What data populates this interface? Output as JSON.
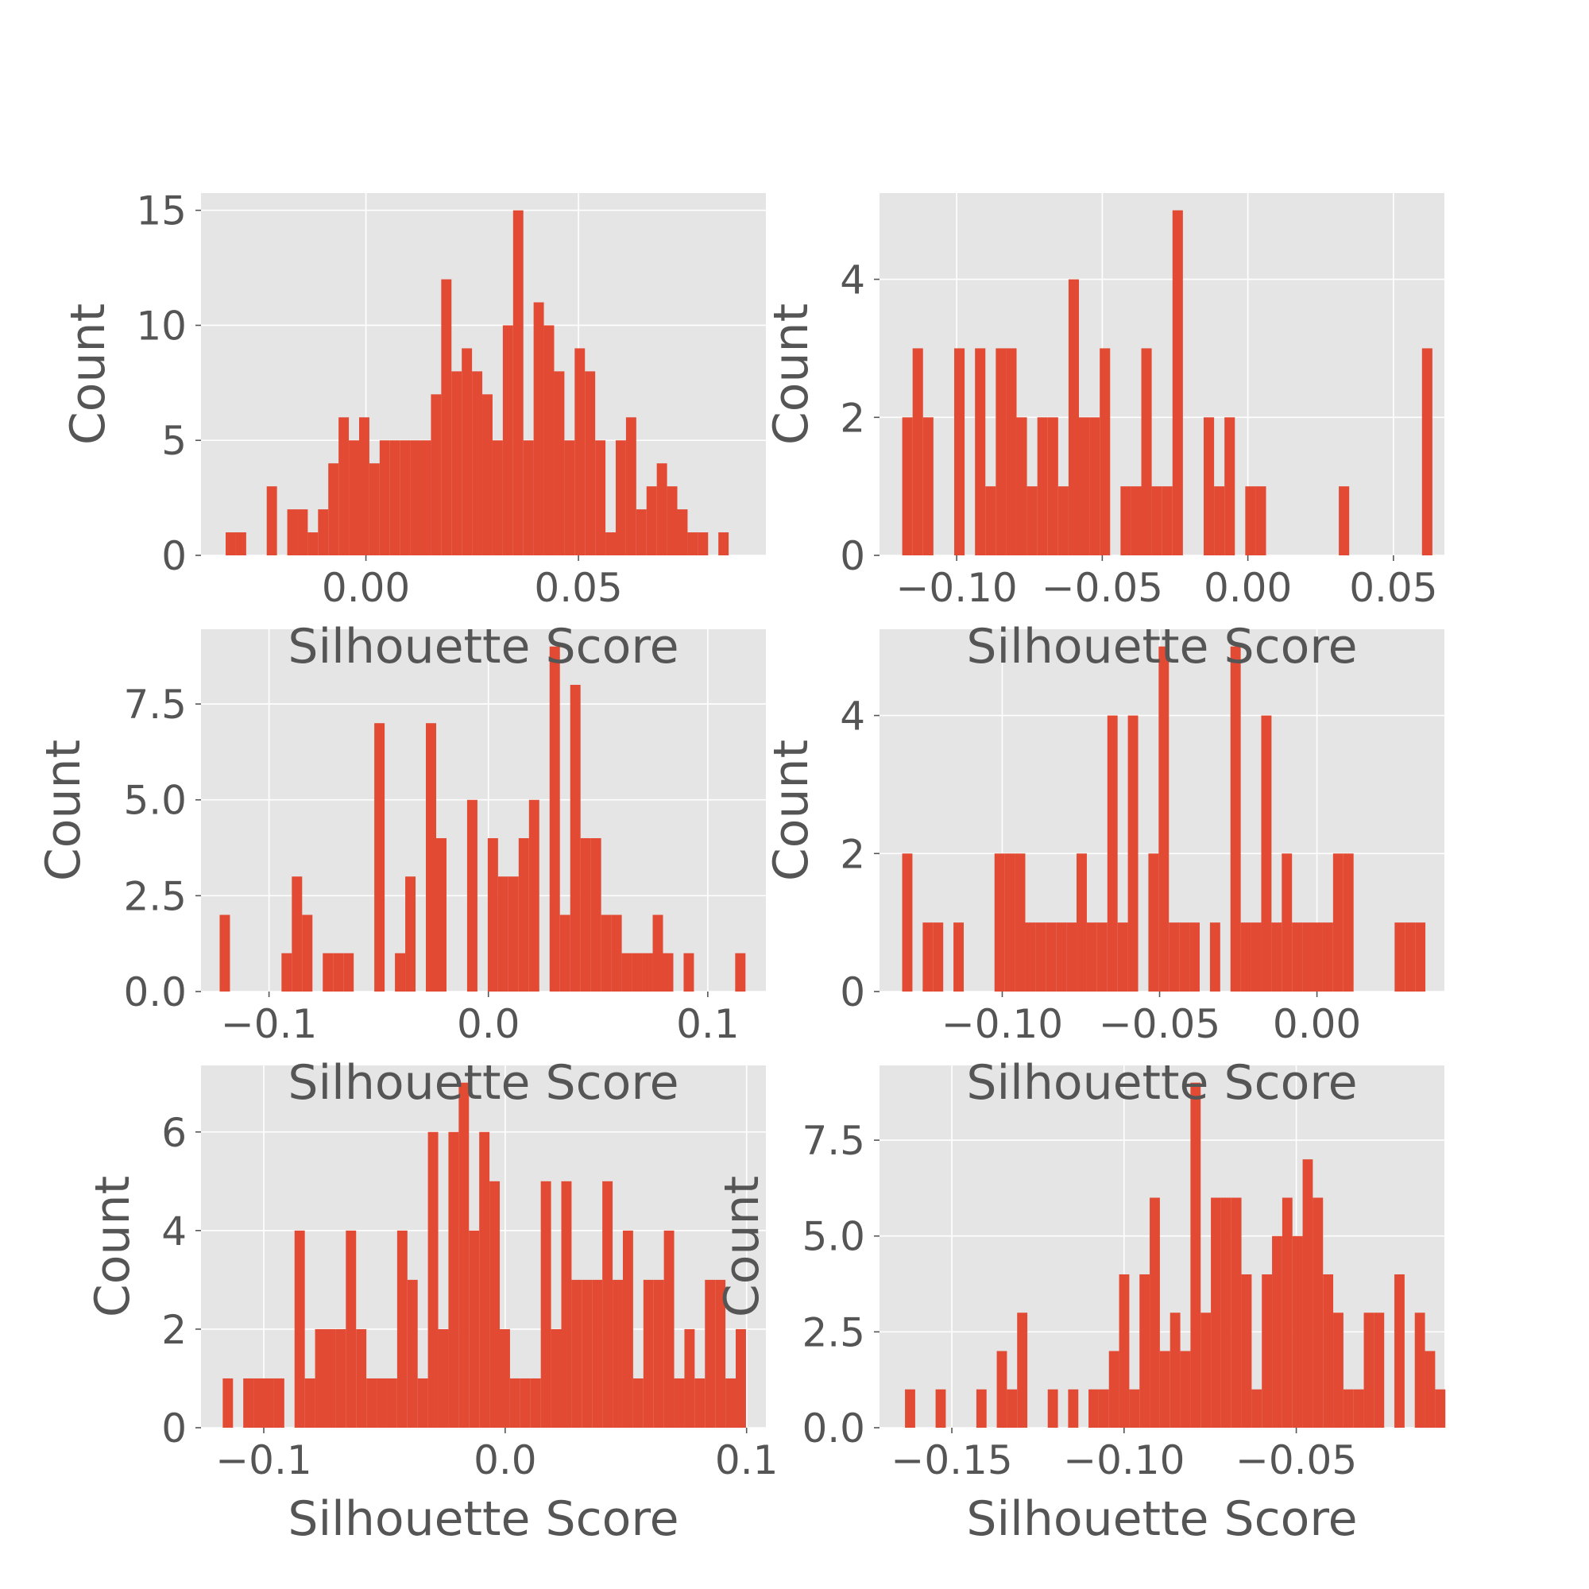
{
  "figure": {
    "bar_color": "#E24A33",
    "panel_bg": "#E5E5E5",
    "grid_color": "#FFFFFF",
    "text_color": "#555555"
  },
  "chart_data": [
    {
      "type": "bar",
      "title": "",
      "xlabel": "Silhouette Score",
      "ylabel": "Count",
      "xlim": [
        -0.0388,
        0.0941
      ],
      "ylim": [
        0,
        15.75
      ],
      "xticks": [
        0.0,
        0.05
      ],
      "xtick_labels": [
        "0.00",
        "0.05"
      ],
      "yticks": [
        0,
        5,
        10,
        15
      ],
      "ytick_labels": [
        "0",
        "5",
        "10",
        "15"
      ],
      "grid": true,
      "bin_start": -0.033,
      "bin_width": 0.002415,
      "values": [
        1,
        1,
        0,
        0,
        3,
        0,
        2,
        2,
        1,
        2,
        4,
        6,
        5,
        6,
        4,
        5,
        5,
        5,
        5,
        5,
        7,
        12,
        8,
        9,
        8,
        7,
        5,
        10,
        15,
        5,
        11,
        10,
        8,
        5,
        9,
        8,
        5,
        1,
        5,
        6,
        2,
        3,
        4,
        3,
        2,
        1,
        1,
        0,
        1
      ]
    },
    {
      "type": "bar",
      "title": "",
      "xlabel": "Silhouette Score",
      "ylabel": "Count",
      "xlim": [
        -0.1265,
        0.0675
      ],
      "ylim": [
        0,
        5.25
      ],
      "xticks": [
        -0.1,
        -0.05,
        0.0,
        0.05
      ],
      "xtick_labels": [
        "−0.10",
        "−0.05",
        "0.00",
        "0.05"
      ],
      "yticks": [
        0,
        2,
        4
      ],
      "ytick_labels": [
        "0",
        "2",
        "4"
      ],
      "grid": true,
      "bin_start": -0.1187,
      "bin_width": 0.00357,
      "values": [
        2,
        3,
        2,
        0,
        0,
        3,
        0,
        3,
        1,
        3,
        3,
        2,
        1,
        2,
        2,
        1,
        4,
        2,
        2,
        3,
        0,
        1,
        1,
        3,
        1,
        1,
        5,
        0,
        0,
        2,
        1,
        2,
        0,
        1,
        1,
        0,
        0,
        0,
        0,
        0,
        0,
        0,
        1,
        0,
        0,
        0,
        0,
        0,
        0,
        0,
        3
      ]
    },
    {
      "type": "bar",
      "title": "",
      "xlabel": "Silhouette Score",
      "ylabel": "Count",
      "xlim": [
        -0.131,
        0.1265
      ],
      "ylim": [
        0,
        9.45
      ],
      "xticks": [
        -0.1,
        0.0,
        0.1
      ],
      "xtick_labels": [
        "−0.1",
        "0.0",
        "0.1"
      ],
      "yticks": [
        0.0,
        2.5,
        5.0,
        7.5
      ],
      "ytick_labels": [
        "0.0",
        "2.5",
        "5.0",
        "7.5"
      ],
      "grid": true,
      "bin_start": -0.1225,
      "bin_width": 0.0047,
      "values": [
        2,
        0,
        0,
        0,
        0,
        0,
        1,
        3,
        2,
        0,
        1,
        1,
        1,
        0,
        0,
        7,
        0,
        1,
        3,
        0,
        7,
        4,
        0,
        0,
        5,
        0,
        4,
        3,
        3,
        4,
        5,
        0,
        9,
        2,
        8,
        4,
        4,
        2,
        2,
        1,
        1,
        1,
        2,
        1,
        0,
        1,
        0,
        0,
        0,
        0,
        1
      ]
    },
    {
      "type": "bar",
      "title": "",
      "xlabel": "Silhouette Score",
      "ylabel": "Count",
      "xlim": [
        -0.139,
        0.0405
      ],
      "ylim": [
        0,
        5.25
      ],
      "xticks": [
        -0.1,
        -0.05,
        0.0
      ],
      "xtick_labels": [
        "−0.10",
        "−0.05",
        "0.00"
      ],
      "yticks": [
        0,
        2,
        4
      ],
      "ytick_labels": [
        "0",
        "2",
        "4"
      ],
      "grid": true,
      "bin_start": -0.1318,
      "bin_width": 0.00326,
      "values": [
        2,
        0,
        1,
        1,
        0,
        1,
        0,
        0,
        0,
        2,
        2,
        2,
        1,
        1,
        1,
        1,
        1,
        2,
        1,
        1,
        4,
        1,
        4,
        0,
        2,
        5,
        1,
        1,
        1,
        0,
        1,
        0,
        5,
        1,
        1,
        4,
        1,
        2,
        1,
        1,
        1,
        1,
        2,
        2,
        0,
        0,
        0,
        0,
        1,
        1,
        1
      ]
    },
    {
      "type": "bar",
      "title": "",
      "xlabel": "Silhouette Score",
      "ylabel": "Count",
      "xlim": [
        -0.126,
        0.108
      ],
      "ylim": [
        0,
        7.35
      ],
      "xticks": [
        -0.1,
        0.0,
        0.1
      ],
      "xtick_labels": [
        "−0.1",
        "0.0",
        "0.1"
      ],
      "yticks": [
        0,
        2,
        4,
        6
      ],
      "ytick_labels": [
        "0",
        "2",
        "4",
        "6"
      ],
      "grid": true,
      "bin_start": -0.117,
      "bin_width": 0.00425,
      "values": [
        1,
        0,
        1,
        1,
        1,
        1,
        0,
        4,
        1,
        2,
        2,
        2,
        4,
        2,
        1,
        1,
        1,
        4,
        3,
        1,
        6,
        2,
        6,
        7,
        4,
        6,
        5,
        2,
        1,
        1,
        1,
        5,
        2,
        5,
        3,
        3,
        3,
        5,
        3,
        4,
        1,
        3,
        3,
        4,
        1,
        2,
        1,
        3,
        3,
        1,
        2
      ]
    },
    {
      "type": "bar",
      "title": "",
      "xlabel": "Silhouette Score",
      "ylabel": "Count",
      "xlim": [
        -0.171,
        -0.007
      ],
      "ylim": [
        0,
        9.45
      ],
      "xticks": [
        -0.15,
        -0.1,
        -0.05
      ],
      "xtick_labels": [
        "−0.15",
        "−0.10",
        "−0.05"
      ],
      "yticks": [
        0.0,
        2.5,
        5.0,
        7.5
      ],
      "ytick_labels": [
        "0.0",
        "2.5",
        "5.0",
        "7.5"
      ],
      "grid": true,
      "bin_start": -0.1636,
      "bin_width": 0.00296,
      "values": [
        1,
        0,
        0,
        1,
        0,
        0,
        0,
        1,
        0,
        2,
        1,
        3,
        0,
        0,
        1,
        0,
        1,
        0,
        1,
        1,
        2,
        4,
        1,
        4,
        6,
        2,
        3,
        2,
        9,
        3,
        6,
        6,
        6,
        4,
        1,
        4,
        5,
        6,
        5,
        7,
        6,
        4,
        3,
        1,
        1,
        3,
        3,
        0,
        4,
        0,
        3,
        2,
        1
      ]
    }
  ]
}
